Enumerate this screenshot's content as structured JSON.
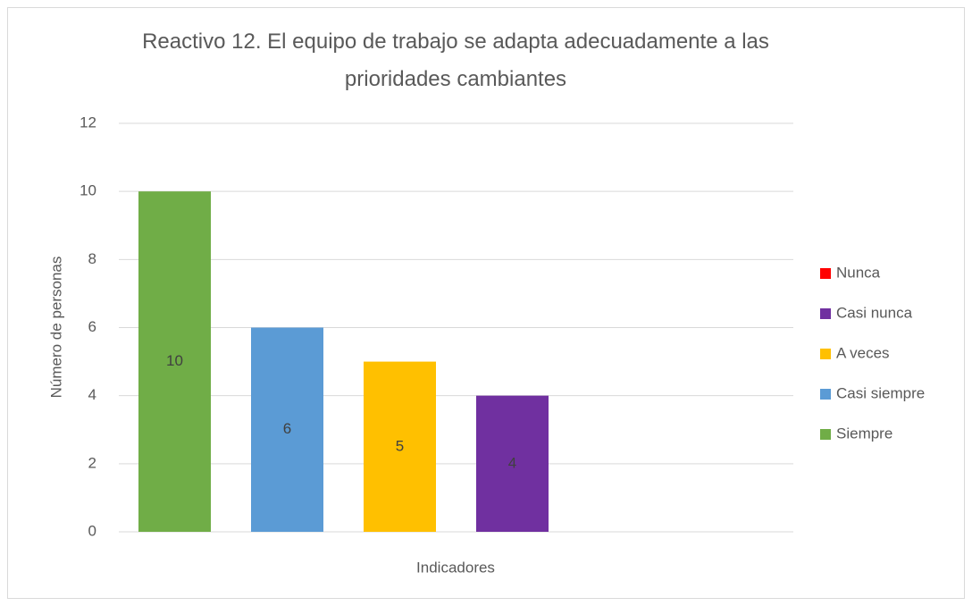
{
  "chart_data": {
    "type": "bar",
    "title": "Reactivo 12. El equipo de trabajo se adapta adecuadamente a las prioridades cambiantes",
    "x_label": "Indicadores",
    "y_label": "Número de personas",
    "categories": [
      null
    ],
    "series": [
      {
        "name": "Siempre",
        "color": "#70ad47",
        "values": [
          10
        ]
      },
      {
        "name": "Casi siempre",
        "color": "#5b9bd5",
        "values": [
          6
        ]
      },
      {
        "name": "A veces",
        "color": "#ffc000",
        "values": [
          5
        ]
      },
      {
        "name": "Casi nunca",
        "color": "#7030a0",
        "values": [
          4
        ]
      },
      {
        "name": "Nunca",
        "color": "#ff0000",
        "values": [
          0
        ]
      }
    ],
    "ylim": [
      0,
      12
    ],
    "yticks": [
      0,
      2,
      4,
      6,
      8,
      10,
      12
    ],
    "grid": true,
    "legend": "right"
  }
}
